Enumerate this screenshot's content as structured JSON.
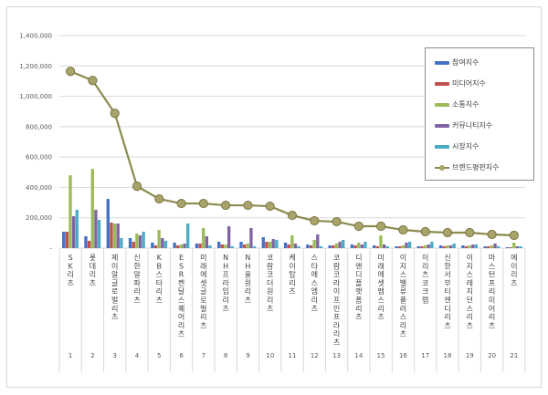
{
  "chart_data": {
    "type": "bar",
    "title": "",
    "xlabel": "",
    "ylabel": "",
    "ylim": [
      0,
      1400000
    ],
    "yticks": [
      "-",
      "200,000",
      "400,000",
      "600,000",
      "800,000",
      "1,000,000",
      "1,200,000",
      "1,400,000"
    ],
    "grid": true,
    "legend_position": "right",
    "categories": [
      "SK리츠",
      "롯데리츠",
      "제이알글로벌리츠",
      "신한알파리츠",
      "KB스타리츠",
      "ESR켄달스퀘어리츠",
      "미래에셋글로벌리츠",
      "NH프라임리츠",
      "NH올원리츠",
      "코람코더원리츠",
      "케이탑리츠",
      "스타에스엠리츠",
      "코람코라이프인프라리츠",
      "디앤디플랫폼리츠",
      "미래에셋맵스리츠",
      "이지스밸류플러스리츠",
      "이리츠코크렙",
      "신한서부티엔디리츠",
      "이지스레지던스리츠",
      "마스턴프리미어리츠",
      "에이리츠"
    ],
    "ranks": [
      "1",
      "2",
      "3",
      "4",
      "5",
      "6",
      "7",
      "8",
      "9",
      "10",
      "11",
      "12",
      "13",
      "14",
      "15",
      "16",
      "17",
      "18",
      "19",
      "20",
      "21"
    ],
    "series": [
      {
        "name": "참여지수",
        "type": "bar",
        "color": "#4472c4",
        "values": [
          108000,
          78000,
          324000,
          66000,
          36000,
          36000,
          30000,
          42000,
          42000,
          72000,
          36000,
          24000,
          18000,
          24000,
          18000,
          12000,
          12000,
          18000,
          18000,
          12000,
          6000
        ]
      },
      {
        "name": "미디어지수",
        "type": "bar",
        "color": "#c0504d",
        "values": [
          108000,
          48000,
          168000,
          42000,
          18000,
          18000,
          30000,
          24000,
          24000,
          42000,
          24000,
          18000,
          18000,
          18000,
          12000,
          12000,
          12000,
          12000,
          12000,
          12000,
          6000
        ]
      },
      {
        "name": "소통지수",
        "type": "bar",
        "color": "#9bbb59",
        "values": [
          480000,
          522000,
          162000,
          96000,
          120000,
          24000,
          132000,
          24000,
          30000,
          42000,
          84000,
          54000,
          30000,
          36000,
          84000,
          18000,
          18000,
          18000,
          18000,
          18000,
          36000
        ]
      },
      {
        "name": "커뮤니티지수",
        "type": "bar",
        "color": "#8064a2",
        "values": [
          210000,
          252000,
          162000,
          84000,
          66000,
          30000,
          78000,
          144000,
          132000,
          60000,
          30000,
          90000,
          42000,
          24000,
          24000,
          36000,
          24000,
          18000,
          24000,
          30000,
          12000
        ]
      },
      {
        "name": "시장지수",
        "type": "bar",
        "color": "#4bacc6",
        "values": [
          252000,
          186000,
          66000,
          108000,
          48000,
          162000,
          18000,
          12000,
          12000,
          54000,
          12000,
          12000,
          54000,
          42000,
          12000,
          42000,
          42000,
          30000,
          24000,
          12000,
          12000
        ]
      },
      {
        "name": "브랜드평판지수",
        "type": "line",
        "color": "#8b8b4f",
        "values": [
          1164000,
          1104000,
          888000,
          408000,
          324000,
          294000,
          294000,
          282000,
          282000,
          276000,
          216000,
          180000,
          174000,
          144000,
          144000,
          120000,
          108000,
          102000,
          102000,
          90000,
          84000
        ]
      }
    ]
  },
  "legend": {
    "items": [
      {
        "label": "참여지수",
        "color": "#4472c4"
      },
      {
        "label": "미디어지수",
        "color": "#c0504d"
      },
      {
        "label": "소통지수",
        "color": "#9bbb59"
      },
      {
        "label": "커뮤니티지수",
        "color": "#8064a2"
      },
      {
        "label": "시장지수",
        "color": "#4bacc6"
      },
      {
        "label": "브랜드평판지수",
        "color": "#8b8b4f"
      }
    ]
  }
}
